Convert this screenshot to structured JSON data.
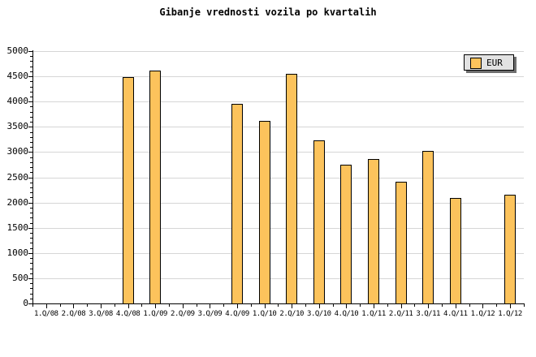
{
  "title": "Gibanje vrednosti vozila po kvartalih",
  "legend": {
    "label": "EUR"
  },
  "colors": {
    "background": "#ffffff",
    "bar_fill": "#FCC35C",
    "bar_border": "#000000",
    "grid": "#d6d6d6",
    "axis": "#000000",
    "legend_bg": "#e2e2e2",
    "legend_shadow": "#6e6e6e"
  },
  "chart_data": {
    "type": "bar",
    "title": "Gibanje vrednosti vozila po kvartalih",
    "series": [
      {
        "name": "EUR",
        "values": [
          null,
          null,
          null,
          4490,
          4620,
          null,
          null,
          3950,
          3620,
          4550,
          3230,
          2750,
          2870,
          2420,
          3020,
          2090,
          null,
          2160
        ]
      }
    ],
    "categories": [
      "1.Q/08",
      "2.Q/08",
      "3.Q/08",
      "4.Q/08",
      "1.Q/09",
      "2.Q/09",
      "3.Q/09",
      "4.Q/09",
      "1.Q/10",
      "2.Q/10",
      "3.Q/10",
      "4.Q/10",
      "1.Q/11",
      "2.Q/11",
      "3.Q/11",
      "4.Q/11",
      "1.Q/12",
      "1.Q/12"
    ],
    "y_tick_labels": [
      "0",
      "500",
      "1000",
      "1500",
      "2000",
      "2500",
      "3000",
      "3500",
      "4000",
      "4500",
      "5000"
    ],
    "ylim": [
      0,
      5000
    ],
    "ytick_step": 500,
    "y_minor_step": 100,
    "grid": "horizontal-major",
    "legend_position": "top-right",
    "xlabel": "",
    "ylabel": ""
  }
}
